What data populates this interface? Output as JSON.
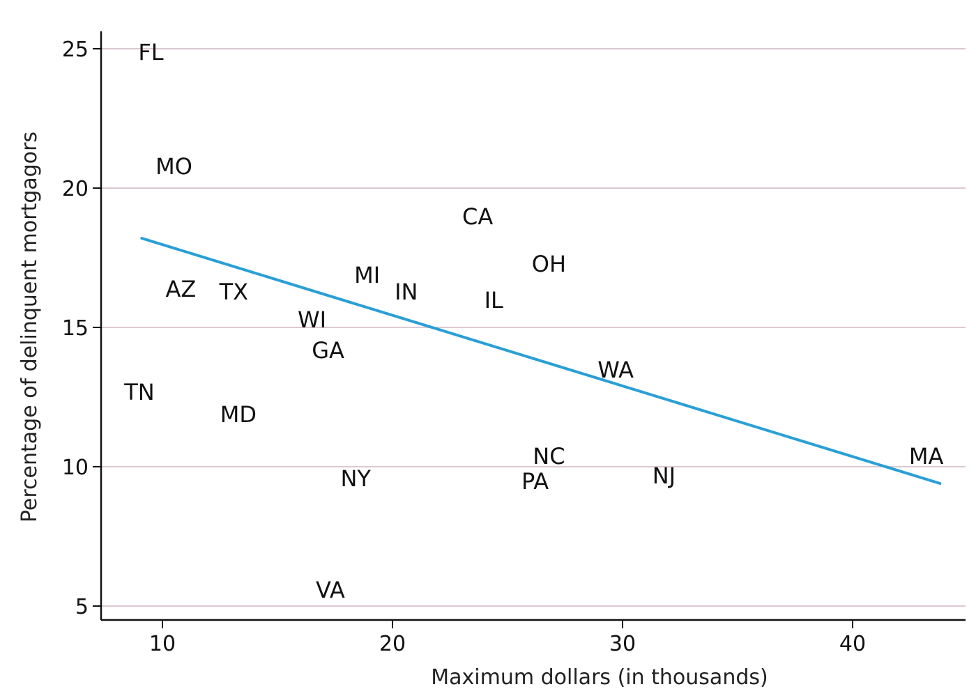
{
  "chart_data": {
    "type": "scatter",
    "title": "",
    "xlabel": "Maximum dollars (in thousands)",
    "ylabel": "Percentage of delinquent mortgagors",
    "xlim": [
      7.3,
      45.8
    ],
    "ylim": [
      4.5,
      25.5
    ],
    "x_ticks": [
      10,
      20,
      30,
      40
    ],
    "y_ticks": [
      5,
      10,
      15,
      20,
      25
    ],
    "grid": true,
    "legend": "none",
    "colors": {
      "trend": "#2a9fd6",
      "grid": "#dcc9d3",
      "text": "#111111"
    },
    "points": [
      {
        "label": "FL",
        "x": 9.5,
        "y": 24.9
      },
      {
        "label": "MO",
        "x": 10.5,
        "y": 20.8
      },
      {
        "label": "CA",
        "x": 23.7,
        "y": 19.0
      },
      {
        "label": "OH",
        "x": 26.8,
        "y": 17.3
      },
      {
        "label": "MI",
        "x": 18.9,
        "y": 16.9
      },
      {
        "label": "AZ",
        "x": 10.8,
        "y": 16.4
      },
      {
        "label": "TX",
        "x": 13.1,
        "y": 16.3
      },
      {
        "label": "IN",
        "x": 20.6,
        "y": 16.3
      },
      {
        "label": "IL",
        "x": 24.4,
        "y": 16.0
      },
      {
        "label": "WI",
        "x": 16.5,
        "y": 15.3
      },
      {
        "label": "GA",
        "x": 17.2,
        "y": 14.2
      },
      {
        "label": "WA",
        "x": 29.7,
        "y": 13.5
      },
      {
        "label": "TN",
        "x": 9.0,
        "y": 12.7
      },
      {
        "label": "MD",
        "x": 13.3,
        "y": 11.9
      },
      {
        "label": "NC",
        "x": 26.8,
        "y": 10.4
      },
      {
        "label": "MA",
        "x": 43.2,
        "y": 10.4
      },
      {
        "label": "NJ",
        "x": 31.8,
        "y": 9.7
      },
      {
        "label": "NY",
        "x": 18.4,
        "y": 9.6
      },
      {
        "label": "PA",
        "x": 26.2,
        "y": 9.5
      },
      {
        "label": "VA",
        "x": 17.3,
        "y": 5.6
      }
    ],
    "trend_line": {
      "x": [
        9.1,
        43.8
      ],
      "y": [
        18.2,
        9.4
      ]
    }
  }
}
